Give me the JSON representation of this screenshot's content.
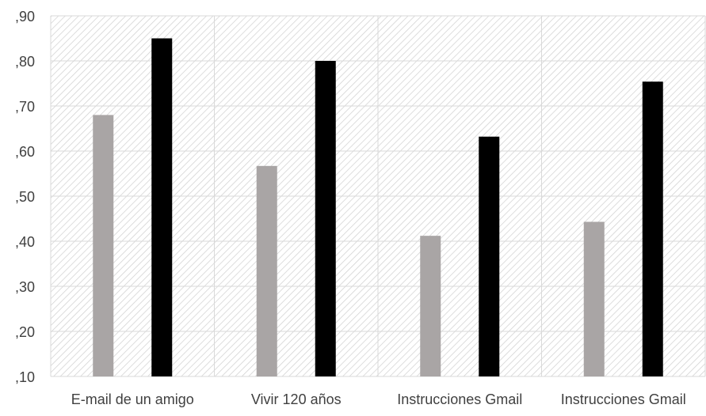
{
  "chart_data": {
    "type": "bar",
    "categories": [
      "E-mail de un amigo",
      "Vivir 120 años",
      "Instrucciones Gmail",
      "Instrucciones Gmail"
    ],
    "series": [
      {
        "values": [
          0.68,
          0.567,
          0.412,
          0.443
        ],
        "color": "#a9a5a5"
      },
      {
        "values": [
          0.85,
          0.8,
          0.632,
          0.754
        ],
        "color": "#000000"
      }
    ],
    "yticks": [
      ",10",
      ",20",
      ",30",
      ",40",
      ",50",
      ",60",
      ",70",
      ",80",
      ",90"
    ],
    "ylim": [
      0.1,
      0.9
    ],
    "grid": true,
    "background": "diagonal-hatch",
    "title": "",
    "xlabel": "",
    "ylabel": ""
  }
}
